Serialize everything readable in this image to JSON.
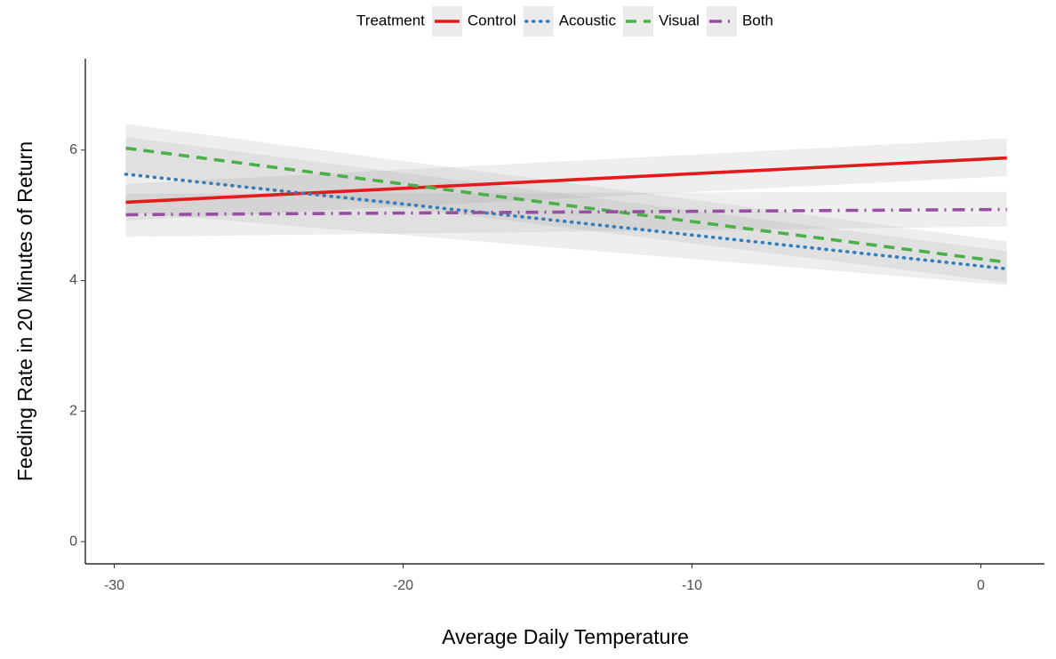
{
  "chart_data": {
    "type": "line",
    "x_label": "Average Daily Temperature",
    "y_label": "Feeding Rate in 20 Minutes of Return",
    "legend_title": "Treatment",
    "legend_position": "top",
    "x": [
      -29.6,
      0.9
    ],
    "series": [
      {
        "name": "Control",
        "color": "#e41a1c",
        "linestyle": "solid",
        "values": [
          5.2,
          5.88
        ],
        "lower": [
          4.92,
          5.6
        ],
        "upper": [
          5.48,
          6.18
        ]
      },
      {
        "name": "Acoustic",
        "color": "#377eb8",
        "linestyle": "dotted",
        "values": [
          5.63,
          4.18
        ],
        "lower": [
          5.05,
          3.93
        ],
        "upper": [
          6.2,
          4.45
        ]
      },
      {
        "name": "Visual",
        "color": "#4daf4a",
        "linestyle": "dashed",
        "values": [
          6.03,
          4.28
        ],
        "lower": [
          5.65,
          3.97
        ],
        "upper": [
          6.4,
          4.6
        ]
      },
      {
        "name": "Both",
        "color": "#984ea3",
        "linestyle": "dashdot",
        "values": [
          5.01,
          5.09
        ],
        "lower": [
          4.67,
          4.83
        ],
        "upper": [
          5.33,
          5.36
        ]
      }
    ],
    "xlim": [
      -31,
      2.2
    ],
    "xticks": [
      -30,
      -20,
      -10,
      0
    ],
    "ylim": [
      -0.34,
      7.4
    ],
    "yticks": [
      0,
      2,
      4,
      6
    ],
    "grid": false
  }
}
